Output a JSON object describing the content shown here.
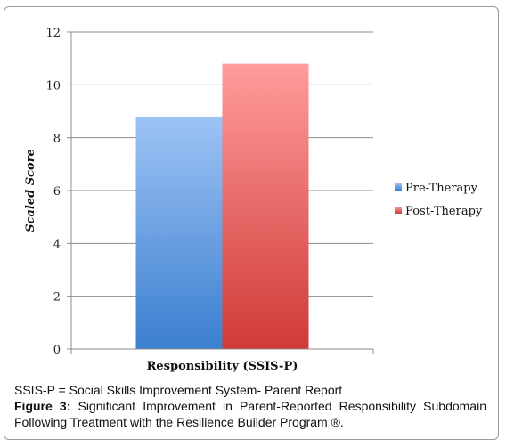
{
  "chart_data": {
    "type": "bar",
    "categories": [
      "Responsibility (SSIS-P)"
    ],
    "series": [
      {
        "name": "Pre-Therapy",
        "values": [
          8.8
        ],
        "color_top": "#9dc3f5",
        "color_bottom": "#3b7fcf"
      },
      {
        "name": "Post-Therapy",
        "values": [
          10.8
        ],
        "color_top": "#ff9c9c",
        "color_bottom": "#cf3a37"
      }
    ],
    "title": "",
    "xlabel": "",
    "ylabel": "Scaled Score",
    "ylim": [
      0,
      12
    ],
    "yticks": [
      "0",
      "2",
      "4",
      "6",
      "8",
      "10",
      "12"
    ],
    "grid": true,
    "legend_position": "right"
  },
  "caption": {
    "note": "SSIS-P = Social Skills Improvement System- Parent Report",
    "figure_label": "Figure 3:",
    "figure_text": " Significant Improvement in Parent-Reported Responsibility Subdomain Following Treatment with the Resilience Builder Program ®."
  }
}
